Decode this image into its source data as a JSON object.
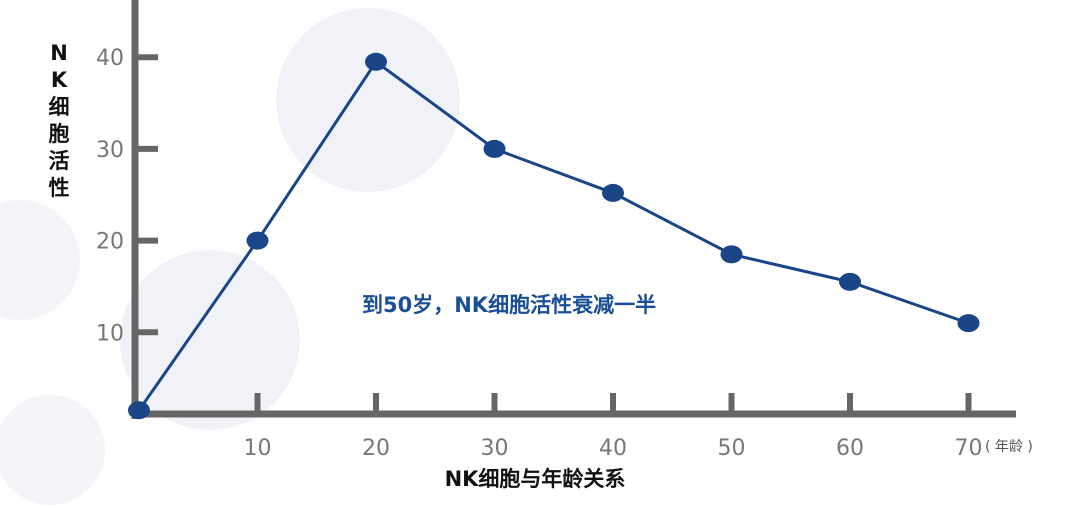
{
  "chart_data": {
    "type": "line",
    "title": "",
    "ylabel": "NK细胞活性",
    "xlabel": "NK细胞与年龄关系",
    "x_unit": "( 年龄 )",
    "x": [
      0,
      10,
      20,
      30,
      40,
      50,
      60,
      70
    ],
    "series": [
      {
        "values": [
          1.5,
          20,
          39.5,
          30,
          25.2,
          18.5,
          15.5,
          11
        ]
      }
    ],
    "xticks": [
      "10",
      "20",
      "30",
      "40",
      "50",
      "60",
      "70"
    ],
    "yticks": [
      "10",
      "20",
      "30",
      "40"
    ],
    "xlim": [
      0,
      75
    ],
    "ylim": [
      0,
      44
    ],
    "grid": false,
    "annotation": "到50岁，NK细胞活性衰减一半",
    "colors": {
      "line": "#1a4688",
      "axis": "#666666",
      "annotation": "#1a4f95",
      "background_shapes": "#eef0f6"
    }
  }
}
